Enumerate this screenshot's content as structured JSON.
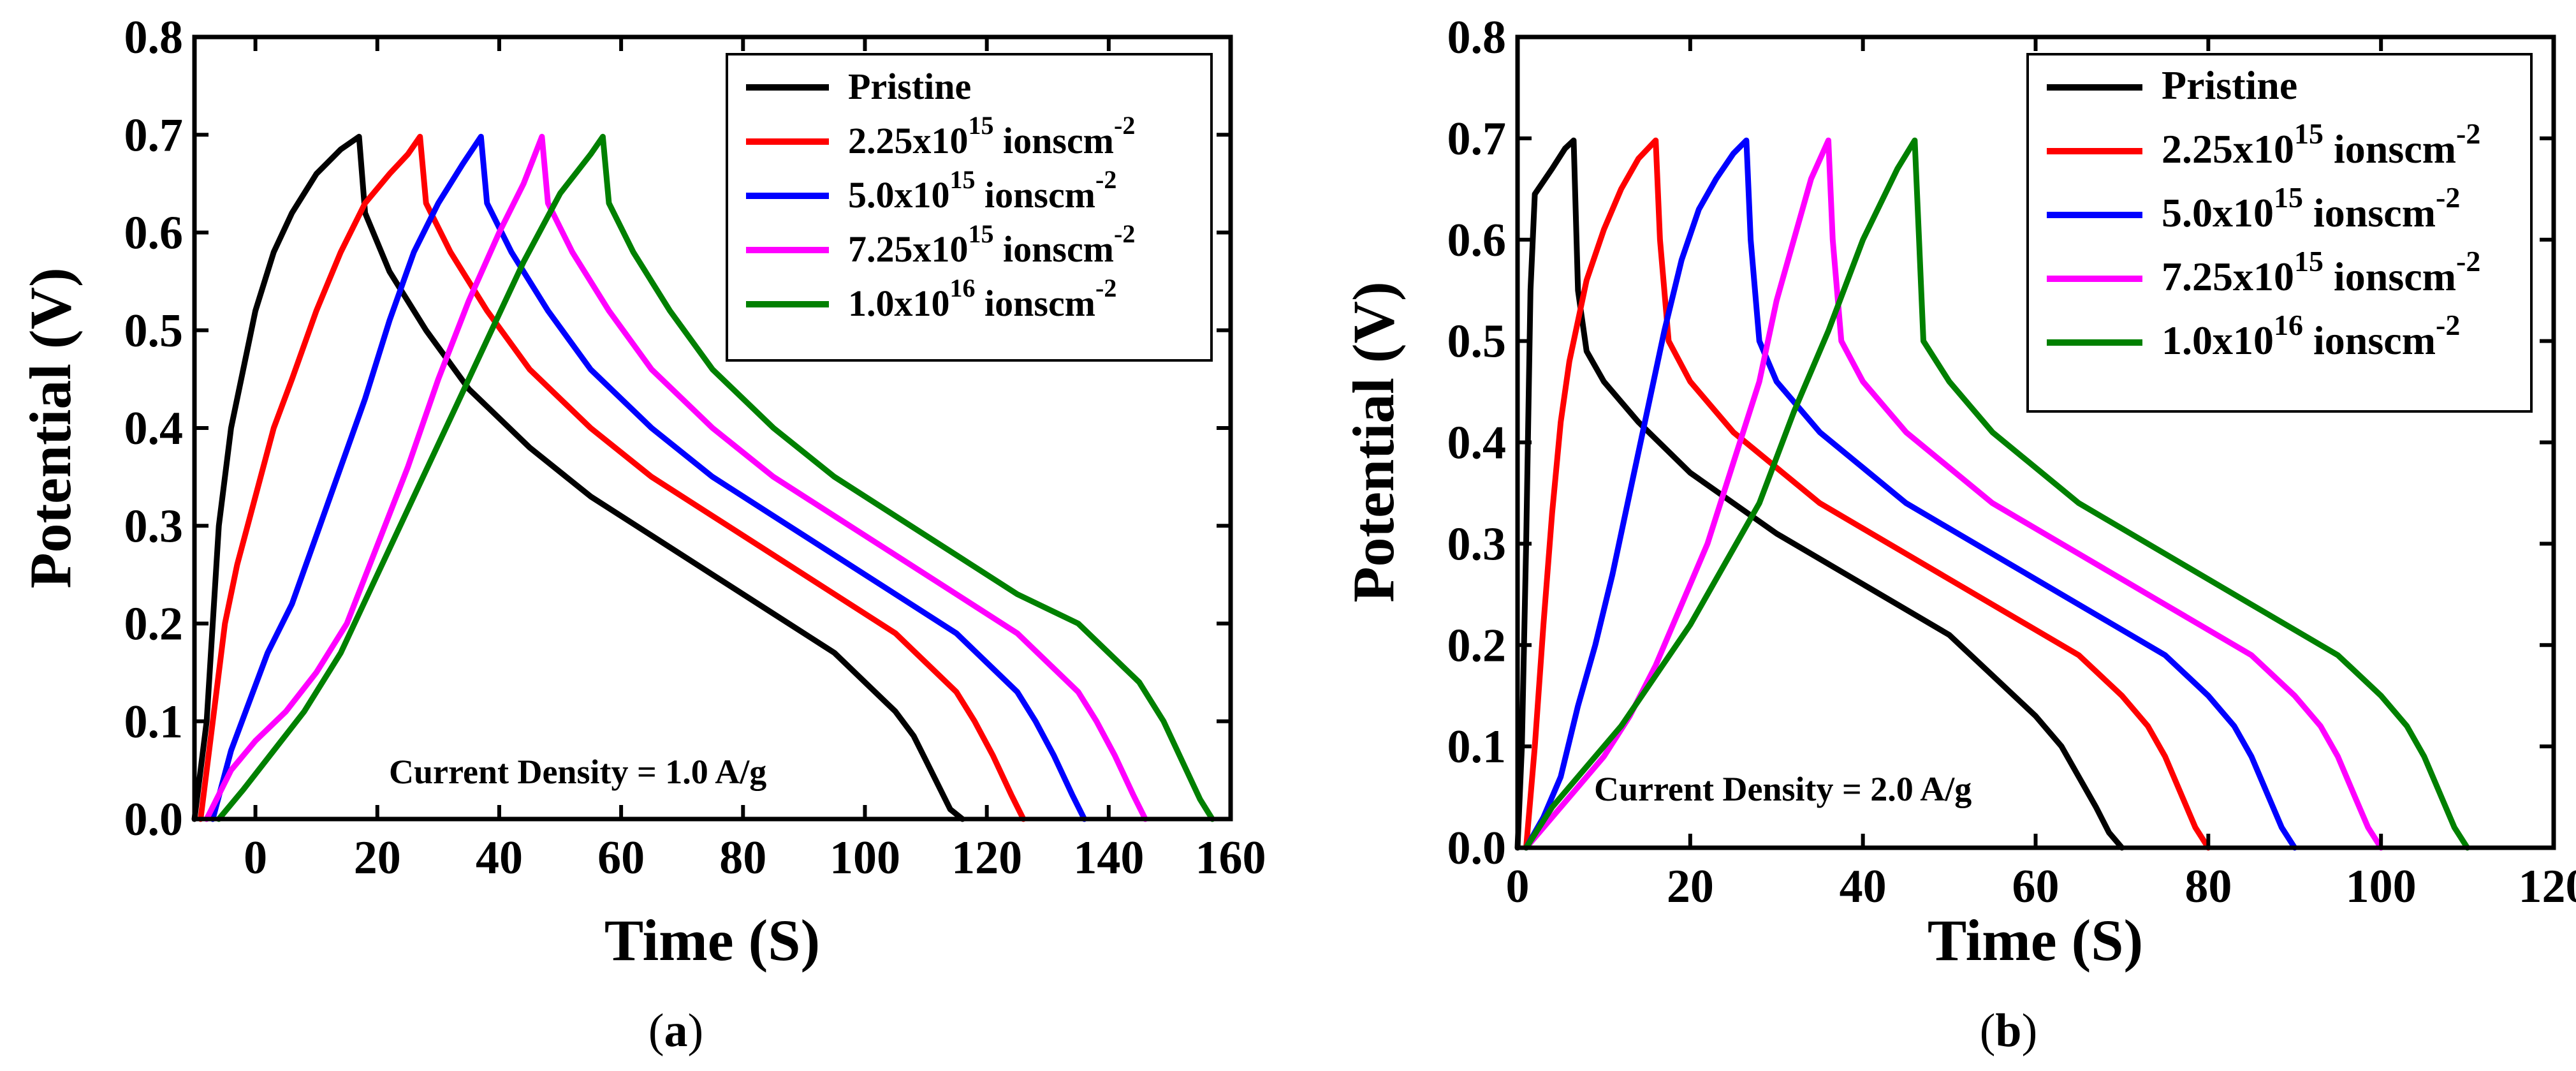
{
  "chart_data": [
    {
      "type": "line",
      "panel_label": "a",
      "xlabel": "Time (S)",
      "ylabel": "Potential (V)",
      "xlim": [
        -10,
        160
      ],
      "ylim": [
        0,
        0.8
      ],
      "xticks": [
        "0",
        "20",
        "40",
        "60",
        "80",
        "100",
        "120",
        "140",
        "160"
      ],
      "yticks": [
        "0.0",
        "0.1",
        "0.2",
        "0.3",
        "0.4",
        "0.5",
        "0.6",
        "0.7",
        "0.8"
      ],
      "annotation": "Current Density = 1.0 A/g",
      "legend_position": "top-right",
      "series": [
        {
          "name_base": "Pristine",
          "name_exp": "",
          "name_suffix": "",
          "name_exp2": "",
          "color": "#000000",
          "x": [
            -10,
            -8,
            -6,
            -4,
            -2,
            0,
            3,
            6,
            10,
            14,
            17,
            18,
            22,
            28,
            35,
            45,
            55,
            65,
            75,
            85,
            95,
            100,
            105,
            108,
            110,
            112,
            114,
            116
          ],
          "y": [
            0,
            0.1,
            0.3,
            0.4,
            0.46,
            0.52,
            0.58,
            0.62,
            0.66,
            0.685,
            0.698,
            0.62,
            0.56,
            0.5,
            0.44,
            0.38,
            0.33,
            0.29,
            0.25,
            0.21,
            0.17,
            0.14,
            0.11,
            0.085,
            0.06,
            0.035,
            0.01,
            0
          ]
        },
        {
          "name_base": "2.25x10",
          "name_exp": "15",
          "name_suffix": " ionscm",
          "name_exp2": "-2",
          "color": "#ff0000",
          "x": [
            -9,
            -7,
            -5,
            -3,
            0,
            3,
            6,
            10,
            14,
            18,
            22,
            25,
            27,
            28,
            32,
            38,
            45,
            55,
            65,
            75,
            85,
            95,
            105,
            110,
            115,
            118,
            121,
            124,
            126
          ],
          "y": [
            0,
            0.1,
            0.2,
            0.26,
            0.33,
            0.4,
            0.45,
            0.52,
            0.58,
            0.63,
            0.66,
            0.68,
            0.698,
            0.63,
            0.58,
            0.52,
            0.46,
            0.4,
            0.35,
            0.31,
            0.27,
            0.23,
            0.19,
            0.16,
            0.13,
            0.1,
            0.065,
            0.025,
            0
          ]
        },
        {
          "name_base": "5.0x10",
          "name_exp": "15",
          "name_suffix": " ionscm",
          "name_exp2": "-2",
          "color": "#0000ff",
          "x": [
            -7,
            -4,
            -1,
            2,
            6,
            10,
            14,
            18,
            22,
            26,
            30,
            34,
            37,
            38,
            42,
            48,
            55,
            65,
            75,
            85,
            95,
            105,
            115,
            120,
            125,
            128,
            131,
            134,
            136
          ],
          "y": [
            0,
            0.07,
            0.12,
            0.17,
            0.22,
            0.29,
            0.36,
            0.43,
            0.51,
            0.58,
            0.63,
            0.67,
            0.698,
            0.63,
            0.58,
            0.52,
            0.46,
            0.4,
            0.35,
            0.31,
            0.27,
            0.23,
            0.19,
            0.16,
            0.13,
            0.1,
            0.065,
            0.025,
            0
          ]
        },
        {
          "name_base": "7.25x10",
          "name_exp": "15",
          "name_suffix": " ionscm",
          "name_exp2": "-2",
          "color": "#ff00ff",
          "x": [
            -8,
            -4,
            0,
            5,
            10,
            15,
            20,
            25,
            30,
            35,
            40,
            44,
            47,
            48,
            52,
            58,
            65,
            75,
            85,
            95,
            105,
            115,
            125,
            130,
            135,
            138,
            141,
            144,
            146
          ],
          "y": [
            0,
            0.05,
            0.08,
            0.11,
            0.15,
            0.2,
            0.28,
            0.36,
            0.45,
            0.53,
            0.6,
            0.65,
            0.698,
            0.63,
            0.58,
            0.52,
            0.46,
            0.4,
            0.35,
            0.31,
            0.27,
            0.23,
            0.19,
            0.16,
            0.13,
            0.1,
            0.065,
            0.025,
            0
          ]
        },
        {
          "name_base": "1.0x10",
          "name_exp": "16",
          "name_suffix": " ionscm",
          "name_exp2": "-2",
          "color": "#008000",
          "x": [
            -6,
            -2,
            3,
            8,
            14,
            20,
            26,
            32,
            38,
            44,
            50,
            55,
            57,
            58,
            62,
            68,
            75,
            85,
            95,
            105,
            115,
            125,
            135,
            140,
            145,
            149,
            152,
            155,
            157
          ],
          "y": [
            0,
            0.03,
            0.07,
            0.11,
            0.17,
            0.25,
            0.33,
            0.41,
            0.49,
            0.57,
            0.64,
            0.68,
            0.698,
            0.63,
            0.58,
            0.52,
            0.46,
            0.4,
            0.35,
            0.31,
            0.27,
            0.23,
            0.2,
            0.17,
            0.14,
            0.1,
            0.06,
            0.02,
            0
          ]
        }
      ]
    },
    {
      "type": "line",
      "panel_label": "b",
      "xlabel": "Time (S)",
      "ylabel": "Potential (V)",
      "xlim": [
        0,
        120
      ],
      "ylim": [
        0,
        0.8
      ],
      "xticks": [
        "0",
        "20",
        "40",
        "60",
        "80",
        "100",
        "120"
      ],
      "yticks": [
        "0.0",
        "0.1",
        "0.2",
        "0.3",
        "0.4",
        "0.5",
        "0.6",
        "0.7",
        "0.8"
      ],
      "annotation": "Current Density = 2.0 A/g",
      "legend_position": "top-right",
      "series": [
        {
          "name_base": "Pristine",
          "name_exp": "",
          "name_suffix": "",
          "name_exp2": "",
          "color": "#000000",
          "x": [
            0,
            0.5,
            1,
            1.5,
            2,
            4,
            5.5,
            6.5,
            7,
            8,
            10,
            14,
            20,
            30,
            40,
            50,
            55,
            60,
            63,
            65,
            67,
            68.5,
            70
          ],
          "y": [
            0,
            0.1,
            0.3,
            0.55,
            0.645,
            0.67,
            0.69,
            0.698,
            0.55,
            0.49,
            0.46,
            0.42,
            0.37,
            0.31,
            0.26,
            0.21,
            0.17,
            0.13,
            0.1,
            0.07,
            0.04,
            0.015,
            0
          ]
        },
        {
          "name_base": "2.25x10",
          "name_exp": "15",
          "name_suffix": " ionscm",
          "name_exp2": "-2",
          "color": "#ff0000",
          "x": [
            1,
            2,
            3,
            4,
            5,
            6,
            7,
            8,
            10,
            12,
            14,
            16,
            16.5,
            17.5,
            20,
            25,
            35,
            45,
            55,
            65,
            70,
            73,
            75,
            77,
            78.5,
            80
          ],
          "y": [
            0,
            0.1,
            0.22,
            0.33,
            0.42,
            0.48,
            0.52,
            0.56,
            0.61,
            0.65,
            0.68,
            0.698,
            0.6,
            0.5,
            0.46,
            0.41,
            0.34,
            0.29,
            0.24,
            0.19,
            0.15,
            0.12,
            0.09,
            0.05,
            0.02,
            0
          ]
        },
        {
          "name_base": "5.0x10",
          "name_exp": "15",
          "name_suffix": " ionscm",
          "name_exp2": "-2",
          "color": "#0000ff",
          "x": [
            1,
            3,
            5,
            7,
            9,
            11,
            13,
            15,
            17,
            19,
            21,
            23,
            25,
            26.5,
            27,
            28,
            30,
            35,
            45,
            55,
            65,
            75,
            80,
            83,
            85,
            87,
            88.5,
            90
          ],
          "y": [
            0,
            0.03,
            0.07,
            0.14,
            0.2,
            0.27,
            0.35,
            0.43,
            0.51,
            0.58,
            0.63,
            0.66,
            0.685,
            0.698,
            0.6,
            0.5,
            0.46,
            0.41,
            0.34,
            0.29,
            0.24,
            0.19,
            0.15,
            0.12,
            0.09,
            0.05,
            0.02,
            0
          ]
        },
        {
          "name_base": "7.25x10",
          "name_exp": "15",
          "name_suffix": " ionscm",
          "name_exp2": "-2",
          "color": "#ff00ff",
          "x": [
            1,
            4,
            7,
            10,
            13,
            16,
            19,
            22,
            25,
            28,
            30,
            32,
            34,
            36,
            36.5,
            37.5,
            40,
            45,
            55,
            65,
            75,
            85,
            90,
            93,
            95,
            97,
            98.5,
            100
          ],
          "y": [
            0,
            0.03,
            0.06,
            0.09,
            0.13,
            0.18,
            0.24,
            0.3,
            0.38,
            0.46,
            0.54,
            0.6,
            0.66,
            0.698,
            0.6,
            0.5,
            0.46,
            0.41,
            0.34,
            0.29,
            0.24,
            0.19,
            0.15,
            0.12,
            0.09,
            0.05,
            0.02,
            0
          ]
        },
        {
          "name_base": "1.0x10",
          "name_exp": "16",
          "name_suffix": " ionscm",
          "name_exp2": "-2",
          "color": "#008000",
          "x": [
            1,
            4,
            8,
            12,
            16,
            20,
            24,
            28,
            32,
            36,
            40,
            44,
            46,
            46.5,
            47,
            50,
            55,
            65,
            75,
            85,
            95,
            100,
            103,
            105,
            107,
            108.5,
            110
          ],
          "y": [
            0,
            0.04,
            0.08,
            0.12,
            0.17,
            0.22,
            0.28,
            0.34,
            0.43,
            0.51,
            0.6,
            0.67,
            0.698,
            0.6,
            0.5,
            0.46,
            0.41,
            0.34,
            0.29,
            0.24,
            0.19,
            0.15,
            0.12,
            0.09,
            0.05,
            0.02,
            0
          ]
        }
      ]
    }
  ]
}
